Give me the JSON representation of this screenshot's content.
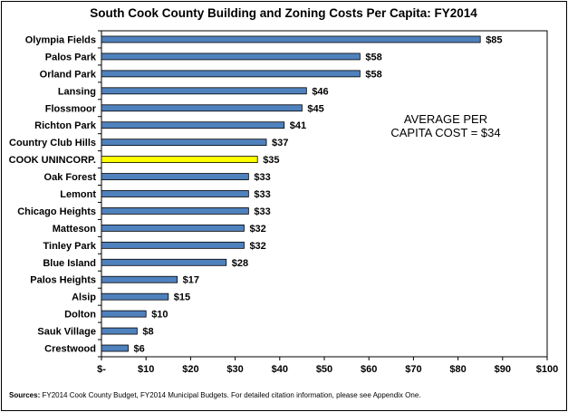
{
  "chart_data": {
    "type": "bar",
    "orientation": "horizontal",
    "title": "South Cook County Building and Zoning Costs Per Capita: FY2014",
    "categories": [
      "Olympia Fields",
      "Palos Park",
      "Orland Park",
      "Lansing",
      "Flossmoor",
      "Richton Park",
      "Country Club Hills",
      "COOK UNINCORP.",
      "Oak Forest",
      "Lemont",
      "Chicago Heights",
      "Matteson",
      "Tinley Park",
      "Blue Island",
      "Palos Heights",
      "Alsip",
      "Dolton",
      "Sauk Village",
      "Crestwood"
    ],
    "values": [
      85,
      58,
      58,
      46,
      45,
      41,
      37,
      35,
      33,
      33,
      33,
      32,
      32,
      28,
      17,
      15,
      10,
      8,
      6
    ],
    "value_labels": [
      "$85",
      "$58",
      "$58",
      "$46",
      "$45",
      "$41",
      "$37",
      "$35",
      "$33",
      "$33",
      "$33",
      "$32",
      "$32",
      "$28",
      "$17",
      "$15",
      "$10",
      "$8",
      "$6"
    ],
    "highlight_index": 7,
    "x_ticks": [
      0,
      10,
      20,
      30,
      40,
      50,
      60,
      70,
      80,
      90,
      100
    ],
    "x_tick_labels": [
      "$-",
      "$10",
      "$20",
      "$30",
      "$40",
      "$50",
      "$60",
      "$70",
      "$80",
      "$90",
      "$100"
    ],
    "xlim": [
      0,
      100
    ],
    "grid": false,
    "annotation": [
      "AVERAGE PER",
      "CAPITA COST = $34"
    ],
    "source_label": "Sources:",
    "source_text": "FY2014 Cook County Budget, FY2014 Municipal Budgets. For detailed citation information, please see Appendix One."
  },
  "colors": {
    "bar": "#4f81bd",
    "bar_highlight": "#ffff00",
    "bar_stroke": "#000000"
  }
}
